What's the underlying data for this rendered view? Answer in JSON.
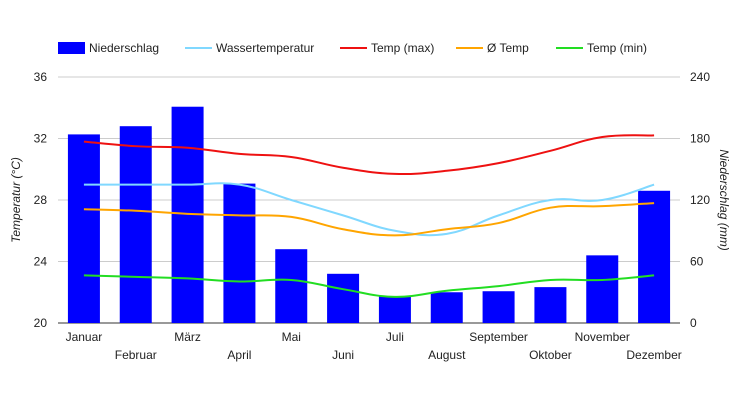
{
  "chart_data": {
    "type": "bar",
    "categories": [
      "Januar",
      "Februar",
      "März",
      "April",
      "Mai",
      "Juni",
      "Juli",
      "August",
      "September",
      "Oktober",
      "November",
      "Dezember"
    ],
    "ylabel_left": "Temperatur (°C)",
    "ylabel_right": "Niederschlag (mm)",
    "ylim_left": [
      20,
      36
    ],
    "yticks_left": [
      20,
      24,
      28,
      32,
      36
    ],
    "ylim_right": [
      0,
      240
    ],
    "yticks_right": [
      0,
      60,
      120,
      180,
      240
    ],
    "grid": true,
    "legend_position": "top-left",
    "series": [
      {
        "name": "Niederschlag",
        "kind": "bar",
        "axis": "right",
        "color": "#0000ff",
        "values": [
          184,
          192,
          211,
          136,
          72,
          48,
          26,
          30,
          31,
          35,
          66,
          129
        ]
      },
      {
        "name": "Wassertemperatur",
        "kind": "line",
        "axis": "left",
        "color": "#80d8ff",
        "values": [
          29.0,
          29.0,
          29.0,
          29.0,
          28.0,
          27.0,
          26.0,
          25.8,
          27.0,
          28.0,
          28.0,
          29.0
        ]
      },
      {
        "name": "Temp (max)",
        "kind": "line",
        "axis": "left",
        "color": "#ee1111",
        "values": [
          31.8,
          31.5,
          31.4,
          31.0,
          30.8,
          30.1,
          29.7,
          29.9,
          30.4,
          31.2,
          32.1,
          32.2
        ]
      },
      {
        "name": "Ø Temp",
        "kind": "line",
        "axis": "left",
        "color": "#ffa500",
        "values": [
          27.4,
          27.3,
          27.1,
          27.0,
          26.9,
          26.1,
          25.7,
          26.1,
          26.5,
          27.5,
          27.6,
          27.8
        ]
      },
      {
        "name": "Temp (min)",
        "kind": "line",
        "axis": "left",
        "color": "#22dd22",
        "values": [
          23.1,
          23.0,
          22.9,
          22.7,
          22.8,
          22.2,
          21.7,
          22.1,
          22.4,
          22.8,
          22.8,
          23.1
        ]
      }
    ]
  }
}
